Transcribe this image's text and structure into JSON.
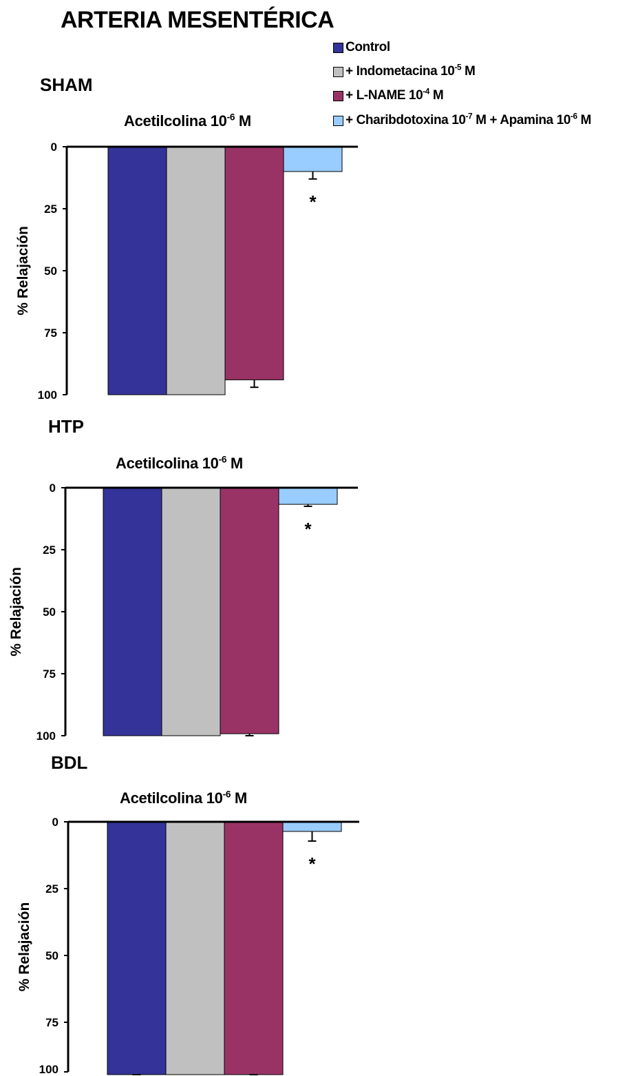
{
  "figure": {
    "title": "ARTERIA MESENTÉRICA"
  },
  "legend": [
    {
      "base": "Control",
      "exp": "",
      "rest": "",
      "exp2": "",
      "tail": "",
      "color": "#333399"
    },
    {
      "base": "+ Indometacina 10",
      "exp": "-5",
      "rest": " M",
      "exp2": "",
      "tail": "",
      "color": "#c0c0c0"
    },
    {
      "base": "+ L-NAME 10",
      "exp": "-4",
      "rest": " M",
      "exp2": "",
      "tail": "",
      "color": "#993366"
    },
    {
      "base": "+ Charibdotoxina 10",
      "exp": "-7",
      "rest": " M + Apamina 10",
      "exp2": "-6",
      "tail": " M",
      "color": "#99ccff"
    }
  ],
  "chart_data": [
    {
      "type": "bar",
      "group": "SHAM",
      "title": {
        "base": "Acetilcolina 10",
        "exp": "-6",
        "rest": " M"
      },
      "ylabel": "% Relajación",
      "ylim": [
        0,
        100
      ],
      "y_inverted": true,
      "yticks": [
        "0",
        "25",
        "50",
        "75",
        "100"
      ],
      "series": [
        {
          "name": "Control",
          "value": 100,
          "error": 0
        },
        {
          "name": "+ Indometacina 10-5 M",
          "value": 100,
          "error": 0
        },
        {
          "name": "+ L-NAME 10-4 M",
          "value": 94,
          "error": 3
        },
        {
          "name": "+ Charibdotoxina 10-7 M + Apamina 10-6 M",
          "value": 10,
          "error": 3
        }
      ],
      "significance": [
        {
          "series": 3,
          "mark": "*"
        }
      ]
    },
    {
      "type": "bar",
      "group": "HTP",
      "title": {
        "base": "Acetilcolina 10",
        "exp": "-6",
        "rest": " M"
      },
      "ylabel": "% Relajación",
      "ylim": [
        0,
        100
      ],
      "y_inverted": true,
      "yticks": [
        "0",
        "25",
        "50",
        "75",
        "100"
      ],
      "series": [
        {
          "name": "Control",
          "value": 100,
          "error": 0
        },
        {
          "name": "+ Indometacina 10-5 M",
          "value": 100,
          "error": 0
        },
        {
          "name": "+ L-NAME 10-4 M",
          "value": 99.2,
          "error": 0.8
        },
        {
          "name": "+ Charibdotoxina 10-7 M + Apamina 10-6 M",
          "value": 6.7,
          "error": 0.8
        }
      ],
      "significance": [
        {
          "series": 3,
          "mark": "*"
        }
      ]
    },
    {
      "type": "bar",
      "group": "BDL",
      "title": {
        "base": "Acetilcolina 10",
        "exp": "-6",
        "rest": " M"
      },
      "ylabel": "% Relajación",
      "ylim": [
        0,
        100
      ],
      "y_inverted": true,
      "yticks": [
        "0",
        "25",
        "50",
        "75",
        "100"
      ],
      "series": [
        {
          "name": "Control",
          "value": 98.9,
          "error": 0.8
        },
        {
          "name": "+ Indometacina 10-5 M",
          "value": 100,
          "error": 0
        },
        {
          "name": "+ L-NAME 10-4 M",
          "value": 97.2,
          "error": 0.8
        },
        {
          "name": "+ Charibdotoxina 10-7 M + Apamina 10-6 M",
          "value": 3.6,
          "error": 3.6
        }
      ],
      "significance": [
        {
          "series": 3,
          "mark": "*"
        }
      ]
    }
  ]
}
